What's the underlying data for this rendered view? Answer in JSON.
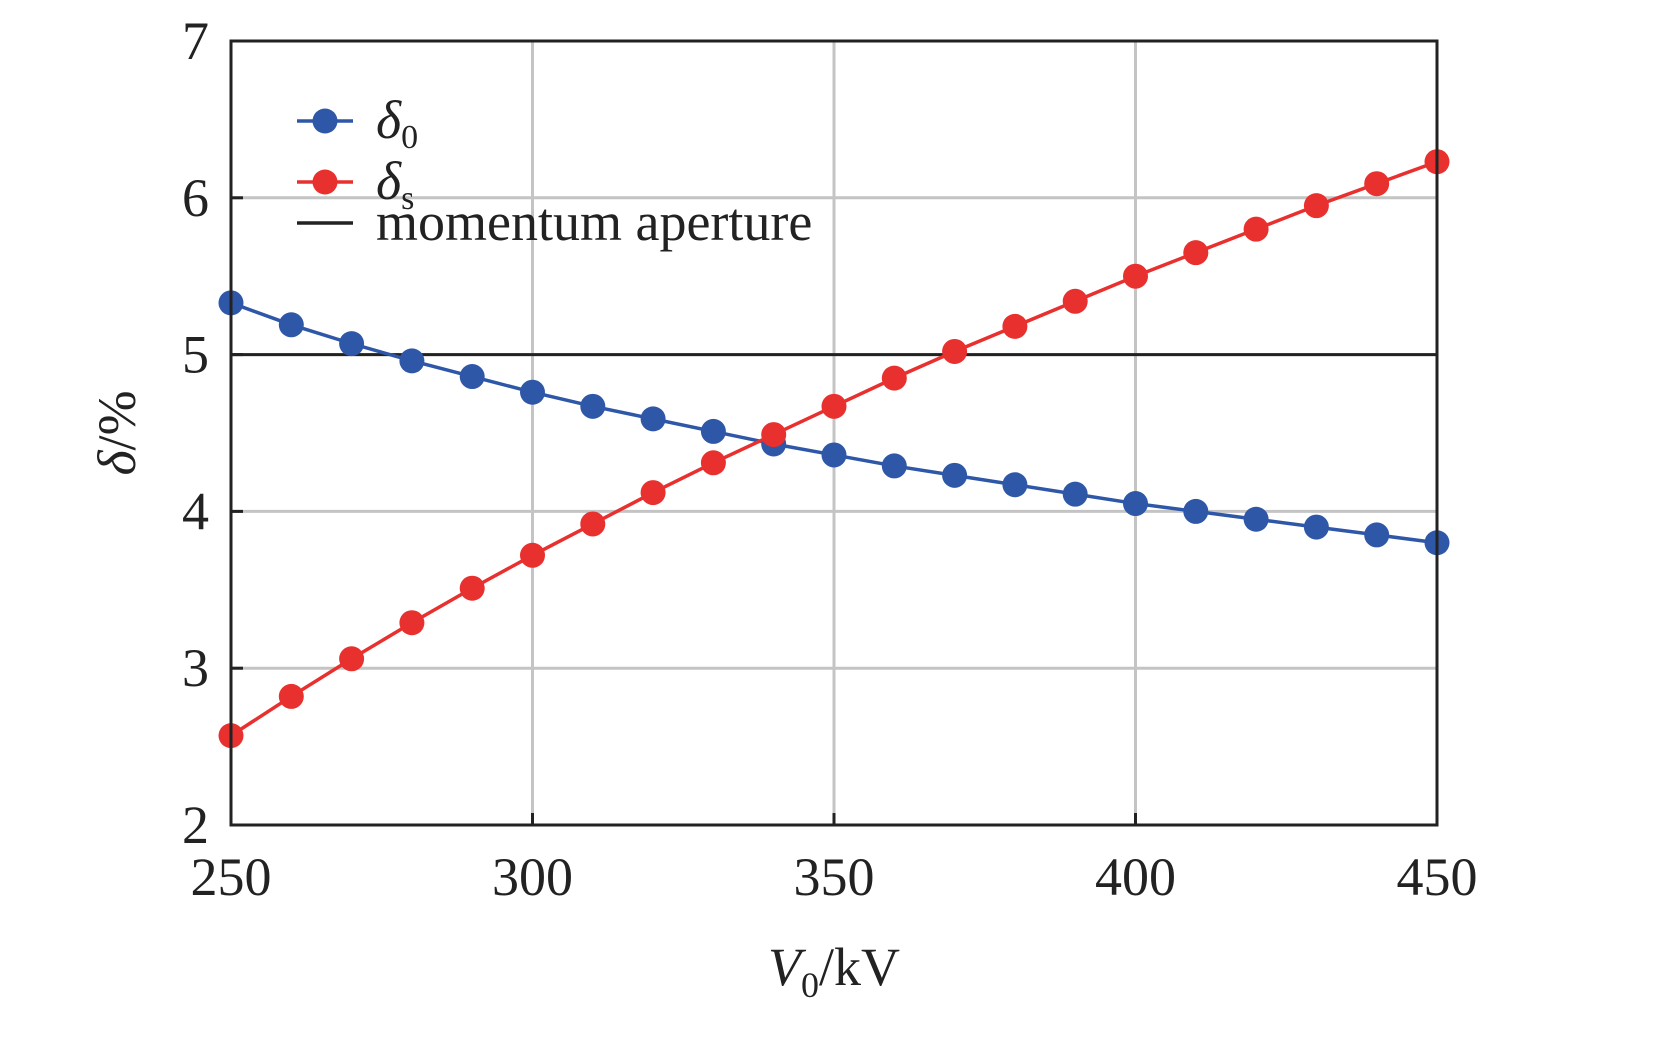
{
  "chart_data": {
    "type": "line",
    "x": [
      250,
      260,
      270,
      280,
      290,
      300,
      310,
      320,
      330,
      340,
      350,
      360,
      370,
      380,
      390,
      400,
      410,
      420,
      430,
      440,
      450
    ],
    "xlabel": {
      "symbol": "V",
      "subscript": "0",
      "unit": "/kV"
    },
    "ylabel": {
      "symbol": "δ",
      "unit": "/%"
    },
    "xlim": [
      250,
      450
    ],
    "ylim": [
      2,
      7
    ],
    "xticks": [
      250,
      300,
      350,
      400,
      450
    ],
    "yticks": [
      2,
      3,
      4,
      5,
      6,
      7
    ],
    "grid": true,
    "legend_position": "top-left",
    "series": [
      {
        "name": "δ0",
        "legend": {
          "symbol": "δ",
          "subscript": "0"
        },
        "color": "#2f57a8",
        "values": [
          5.33,
          5.19,
          5.07,
          4.96,
          4.86,
          4.76,
          4.67,
          4.59,
          4.51,
          4.43,
          4.36,
          4.29,
          4.23,
          4.17,
          4.11,
          4.05,
          4.0,
          3.95,
          3.9,
          3.85,
          3.8
        ]
      },
      {
        "name": "δs",
        "legend": {
          "symbol": "δ",
          "subscript": "s"
        },
        "color": "#e8302e",
        "values": [
          2.57,
          2.82,
          3.06,
          3.29,
          3.51,
          3.72,
          3.92,
          4.12,
          4.31,
          4.49,
          4.67,
          4.85,
          5.02,
          5.18,
          5.34,
          5.5,
          5.65,
          5.8,
          5.95,
          6.09,
          6.23
        ]
      }
    ],
    "reference_line": {
      "name": "momentum aperture",
      "y": 5,
      "color": "#222222"
    }
  }
}
